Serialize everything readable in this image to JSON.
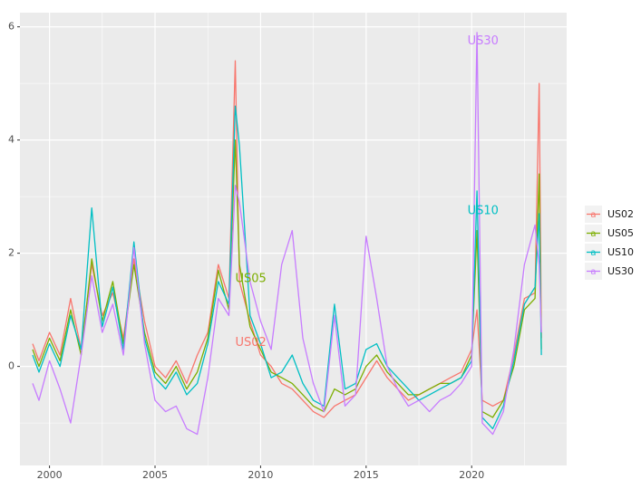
{
  "chart_data": {
    "type": "line",
    "title": "",
    "xlabel": "",
    "ylabel": "",
    "xlim": [
      1998.6,
      2024.5
    ],
    "ylim": [
      -1.75,
      6.25
    ],
    "x_ticks": [
      2000,
      2005,
      2010,
      2015,
      2020
    ],
    "x_tick_labels": [
      "2000",
      "2005",
      "2010",
      "2015",
      "2020"
    ],
    "y_ticks": [
      0,
      2,
      4,
      6
    ],
    "y_tick_labels": [
      "0",
      "2",
      "4",
      "6"
    ],
    "grid": true,
    "legend_position": "right",
    "series": [
      {
        "name": "US02",
        "color": "#F8766D",
        "x": [
          1999.2,
          1999.5,
          2000.0,
          2000.5,
          2001.0,
          2001.5,
          2002.0,
          2002.5,
          2003.0,
          2003.5,
          2004.0,
          2004.5,
          2005.0,
          2005.5,
          2006.0,
          2006.5,
          2007.0,
          2007.5,
          2008.0,
          2008.5,
          2008.8,
          2009.0,
          2009.5,
          2010.0,
          2010.5,
          2011.0,
          2011.5,
          2012.0,
          2012.5,
          2013.0,
          2013.5,
          2014.0,
          2014.5,
          2015.0,
          2015.5,
          2016.0,
          2016.5,
          2017.0,
          2017.5,
          2018.0,
          2018.5,
          2019.0,
          2019.5,
          2020.0,
          2020.25,
          2020.5,
          2021.0,
          2021.5,
          2022.0,
          2022.5,
          2023.0,
          2023.2,
          2023.3
        ],
        "values": [
          0.4,
          0.1,
          0.6,
          0.2,
          1.2,
          0.3,
          1.8,
          0.9,
          1.3,
          0.5,
          1.9,
          0.8,
          0.0,
          -0.2,
          0.1,
          -0.3,
          0.2,
          0.6,
          1.8,
          1.2,
          5.4,
          1.5,
          0.8,
          0.2,
          0.0,
          -0.3,
          -0.4,
          -0.6,
          -0.8,
          -0.9,
          -0.7,
          -0.6,
          -0.5,
          -0.2,
          0.1,
          -0.2,
          -0.4,
          -0.6,
          -0.5,
          -0.4,
          -0.3,
          -0.2,
          -0.1,
          0.3,
          1.0,
          -0.6,
          -0.7,
          -0.6,
          0.2,
          1.2,
          1.3,
          5.0,
          0.5
        ]
      },
      {
        "name": "US05",
        "color": "#7CAE00",
        "x": [
          1999.2,
          1999.5,
          2000.0,
          2000.5,
          2001.0,
          2001.5,
          2002.0,
          2002.5,
          2003.0,
          2003.5,
          2004.0,
          2004.5,
          2005.0,
          2005.5,
          2006.0,
          2006.5,
          2007.0,
          2007.5,
          2008.0,
          2008.5,
          2008.8,
          2009.0,
          2009.5,
          2010.0,
          2010.5,
          2011.0,
          2011.5,
          2012.0,
          2012.5,
          2013.0,
          2013.5,
          2014.0,
          2014.5,
          2015.0,
          2015.5,
          2016.0,
          2016.5,
          2017.0,
          2017.5,
          2018.0,
          2018.5,
          2019.0,
          2019.5,
          2020.0,
          2020.25,
          2020.5,
          2021.0,
          2021.5,
          2022.0,
          2022.5,
          2023.0,
          2023.2,
          2023.3
        ],
        "values": [
          0.3,
          0.0,
          0.5,
          0.1,
          1.0,
          0.2,
          1.9,
          0.8,
          1.5,
          0.4,
          1.8,
          0.6,
          -0.1,
          -0.3,
          0.0,
          -0.4,
          -0.1,
          0.5,
          1.7,
          1.0,
          4.0,
          1.8,
          0.7,
          0.3,
          -0.1,
          -0.2,
          -0.3,
          -0.5,
          -0.7,
          -0.8,
          -0.4,
          -0.5,
          -0.4,
          0.0,
          0.2,
          -0.1,
          -0.3,
          -0.5,
          -0.5,
          -0.4,
          -0.3,
          -0.3,
          -0.2,
          0.2,
          2.4,
          -0.8,
          -0.9,
          -0.6,
          0.0,
          1.0,
          1.2,
          3.4,
          0.3
        ]
      },
      {
        "name": "US10",
        "color": "#00BFC4",
        "x": [
          1999.2,
          1999.5,
          2000.0,
          2000.5,
          2001.0,
          2001.5,
          2002.0,
          2002.5,
          2003.0,
          2003.5,
          2004.0,
          2004.5,
          2005.0,
          2005.5,
          2006.0,
          2006.5,
          2007.0,
          2007.5,
          2008.0,
          2008.5,
          2008.8,
          2009.0,
          2009.5,
          2010.0,
          2010.5,
          2011.0,
          2011.5,
          2012.0,
          2012.5,
          2013.0,
          2013.5,
          2014.0,
          2014.5,
          2015.0,
          2015.5,
          2016.0,
          2016.5,
          2017.0,
          2017.5,
          2018.0,
          2018.5,
          2019.0,
          2019.5,
          2020.0,
          2020.25,
          2020.5,
          2021.0,
          2021.5,
          2022.0,
          2022.5,
          2023.0,
          2023.2,
          2023.3
        ],
        "values": [
          0.2,
          -0.1,
          0.4,
          0.0,
          0.9,
          0.3,
          2.8,
          0.7,
          1.4,
          0.3,
          2.2,
          0.5,
          -0.2,
          -0.4,
          -0.1,
          -0.5,
          -0.3,
          0.4,
          1.5,
          1.1,
          4.6,
          3.9,
          0.9,
          0.4,
          -0.2,
          -0.1,
          0.2,
          -0.3,
          -0.6,
          -0.7,
          1.1,
          -0.4,
          -0.3,
          0.3,
          0.4,
          0.0,
          -0.2,
          -0.4,
          -0.6,
          -0.5,
          -0.4,
          -0.3,
          -0.2,
          0.1,
          3.1,
          -0.9,
          -1.1,
          -0.7,
          0.1,
          1.1,
          1.4,
          2.7,
          0.2
        ]
      },
      {
        "name": "US30",
        "color": "#C77CFF",
        "x": [
          1999.2,
          1999.5,
          2000.0,
          2000.5,
          2001.0,
          2001.5,
          2002.0,
          2002.5,
          2003.0,
          2003.5,
          2004.0,
          2004.5,
          2005.0,
          2005.5,
          2006.0,
          2006.5,
          2007.0,
          2007.5,
          2008.0,
          2008.5,
          2008.8,
          2009.0,
          2009.5,
          2010.0,
          2010.5,
          2011.0,
          2011.5,
          2012.0,
          2012.5,
          2013.0,
          2013.5,
          2014.0,
          2014.5,
          2015.0,
          2015.5,
          2016.0,
          2016.5,
          2017.0,
          2017.5,
          2018.0,
          2018.5,
          2019.0,
          2019.5,
          2020.0,
          2020.25,
          2020.5,
          2021.0,
          2021.5,
          2022.0,
          2022.5,
          2023.0,
          2023.2,
          2023.3
        ],
        "values": [
          -0.3,
          -0.6,
          0.1,
          -0.4,
          -1.0,
          0.2,
          1.6,
          0.6,
          1.1,
          0.2,
          2.1,
          0.4,
          -0.6,
          -0.8,
          -0.7,
          -1.1,
          -1.2,
          -0.2,
          1.2,
          0.9,
          3.2,
          2.9,
          1.5,
          0.8,
          0.3,
          1.8,
          2.4,
          0.5,
          -0.3,
          -0.8,
          0.9,
          -0.7,
          -0.5,
          2.3,
          1.2,
          0.0,
          -0.4,
          -0.7,
          -0.6,
          -0.8,
          -0.6,
          -0.5,
          -0.3,
          0.0,
          5.9,
          -1.0,
          -1.2,
          -0.8,
          0.3,
          1.8,
          2.5,
          1.8,
          0.6
        ]
      }
    ],
    "annotations": [
      {
        "text": "US30",
        "x": 2019.8,
        "y": 5.75,
        "color": "#C77CFF"
      },
      {
        "text": "US10",
        "x": 2019.8,
        "y": 2.75,
        "color": "#00BFC4"
      },
      {
        "text": "US05",
        "x": 2008.8,
        "y": 1.55,
        "color": "#7CAE00"
      },
      {
        "text": "US02",
        "x": 2008.8,
        "y": 0.42,
        "color": "#F8766D"
      }
    ],
    "legend": {
      "glyph": "a",
      "entries": [
        "US02",
        "US05",
        "US10",
        "US30"
      ]
    }
  }
}
